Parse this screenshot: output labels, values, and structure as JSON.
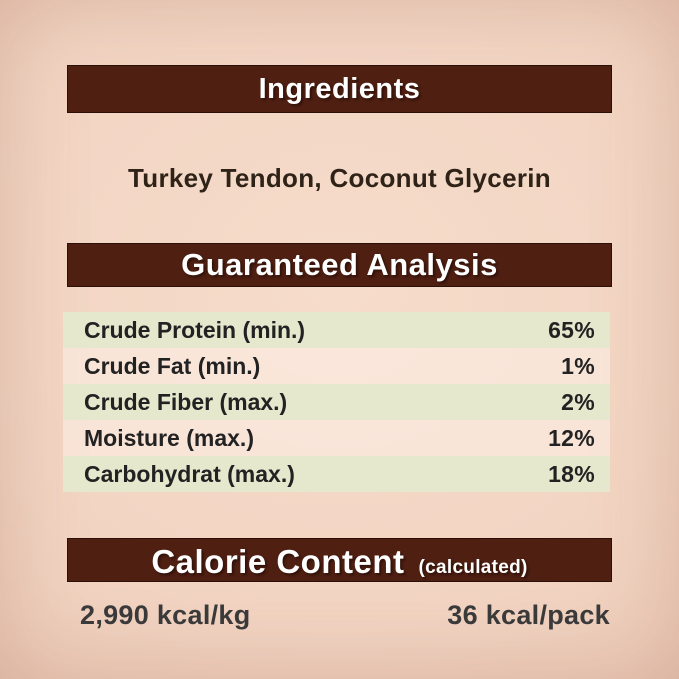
{
  "colors": {
    "banner_bg": "#4f1f12",
    "banner_text": "#ffffff",
    "row_green_bg": "#e5e8cd",
    "page_bg_center": "#f6dccb",
    "page_bg_edge": "#e7c0ad",
    "body_text": "#222222",
    "ingredient_text": "#2f2318",
    "calorie_text": "#3a3a3a"
  },
  "sections": {
    "ingredients": {
      "title": "Ingredients",
      "content": "Turkey Tendon, Coconut Glycerin"
    },
    "guaranteed_analysis": {
      "title": "Guaranteed Analysis",
      "rows": [
        {
          "label": "Crude Protein (min.)",
          "value": "65%"
        },
        {
          "label": "Crude Fat (min.)",
          "value": "1%"
        },
        {
          "label": "Crude Fiber (max.)",
          "value": "2%"
        },
        {
          "label": "Moisture (max.)",
          "value": "12%"
        },
        {
          "label": "Carbohydrat (max.)",
          "value": "18%"
        }
      ]
    },
    "calorie_content": {
      "title": "Calorie Content",
      "subtitle": "(calculated)",
      "per_kg": "2,990 kcal/kg",
      "per_pack": "36 kcal/pack"
    }
  }
}
